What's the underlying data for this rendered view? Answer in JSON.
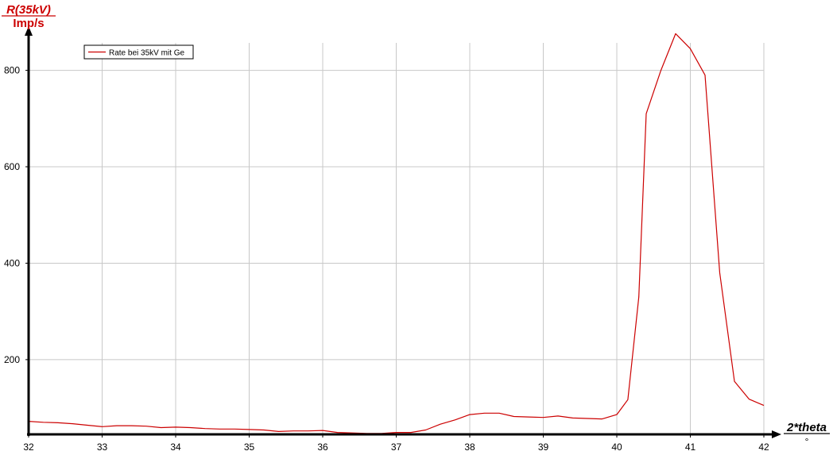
{
  "chart_data": {
    "type": "line",
    "ylabel": "R(35kV)",
    "yunit": "Imp/s",
    "xlabel": "2*theta",
    "xunit": "°",
    "xlim": [
      32,
      42
    ],
    "ylim": [
      45,
      880
    ],
    "x_ticks": [
      "32",
      "33",
      "34",
      "35",
      "36",
      "37",
      "38",
      "39",
      "40",
      "41",
      "42"
    ],
    "y_ticks": [
      "200",
      "400",
      "600",
      "800"
    ],
    "grid": true,
    "legend_position": "top-left",
    "colors": {
      "series": "#cc0000",
      "axis": "#000000",
      "grid": "#c8c8c8"
    },
    "series": [
      {
        "name": "Rate bei 35kV mit Ge",
        "x": [
          32.0,
          32.2,
          32.4,
          32.6,
          32.8,
          33.0,
          33.2,
          33.4,
          33.6,
          33.8,
          34.0,
          34.2,
          34.4,
          34.6,
          34.8,
          35.0,
          35.2,
          35.4,
          35.6,
          35.8,
          36.0,
          36.2,
          36.4,
          36.6,
          36.8,
          37.0,
          37.2,
          37.4,
          37.6,
          37.8,
          38.0,
          38.2,
          38.4,
          38.6,
          38.8,
          39.0,
          39.2,
          39.4,
          39.6,
          39.8,
          40.0,
          40.15,
          40.3,
          40.4,
          40.6,
          40.8,
          41.0,
          41.2,
          41.4,
          41.6,
          41.8,
          42.0
        ],
        "y": [
          72,
          70,
          69,
          67,
          64,
          61,
          63,
          63,
          62,
          59,
          60,
          59,
          57,
          56,
          56,
          55,
          54,
          51,
          52,
          52,
          53,
          49,
          48,
          47,
          47,
          49,
          49,
          54,
          66,
          75,
          86,
          89,
          89,
          82,
          81,
          80,
          83,
          79,
          78,
          77,
          86,
          117,
          330,
          710,
          800,
          876,
          845,
          790,
          380,
          155,
          118,
          105
        ]
      }
    ]
  }
}
